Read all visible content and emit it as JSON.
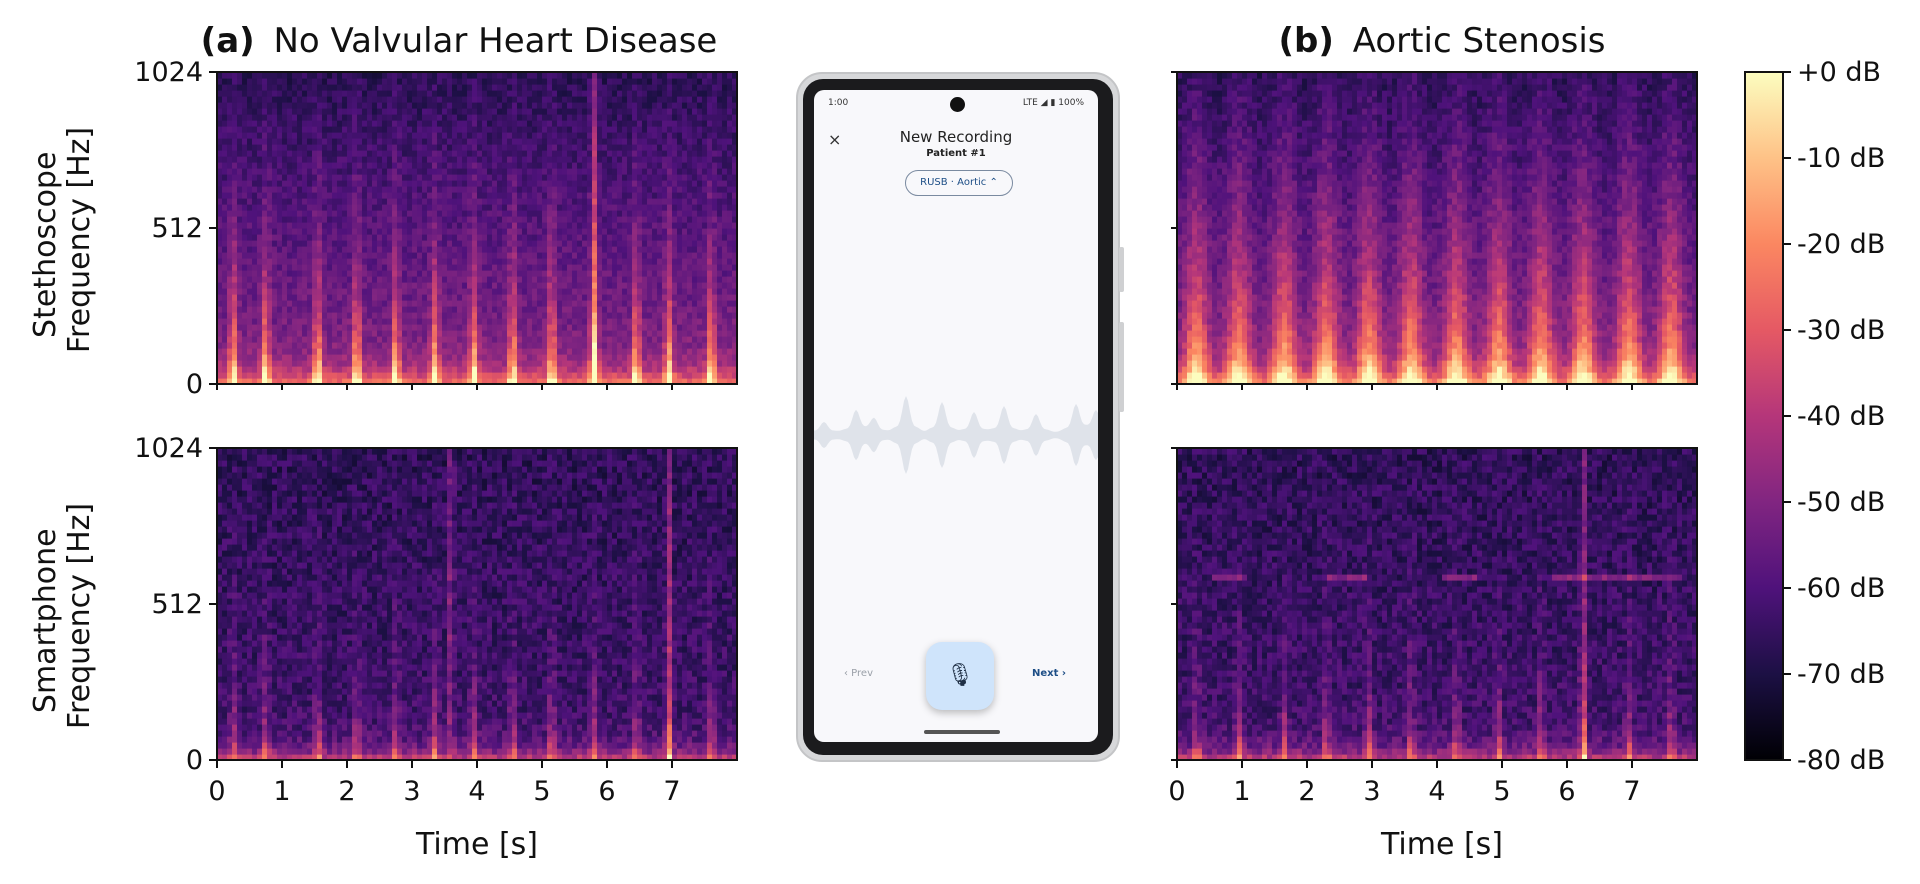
{
  "chart_data": {
    "type": "heatmap",
    "panels": [
      {
        "id": "a-stethoscope",
        "column": "a",
        "row": "stethoscope",
        "title_prefix": "(a)",
        "title": "No Valvular Heart Disease",
        "ylabel": "Stethoscope\nFrequency [Hz]"
      },
      {
        "id": "a-smartphone",
        "column": "a",
        "row": "smartphone",
        "ylabel": "Smartphone\nFrequency [Hz]",
        "xlabel": "Time [s]"
      },
      {
        "id": "b-stethoscope",
        "column": "b",
        "row": "stethoscope",
        "title_prefix": "(b)",
        "title": "Aortic Stenosis"
      },
      {
        "id": "b-smartphone",
        "column": "b",
        "row": "smartphone",
        "xlabel": "Time [s]"
      }
    ],
    "x_ticks": [
      "0",
      "1",
      "2",
      "3",
      "4",
      "5",
      "6",
      "7"
    ],
    "xlim": [
      0,
      8
    ],
    "y_ticks": [
      "0",
      "512",
      "1024"
    ],
    "ylim": [
      0,
      1024
    ],
    "xlabel": "Time [s]",
    "beats_a": [
      0.25,
      0.75,
      1.55,
      2.15,
      2.75,
      3.35,
      3.95,
      4.55,
      5.15,
      5.8,
      6.45,
      6.95,
      7.6
    ],
    "beats_b": [
      0.3,
      0.95,
      1.65,
      2.3,
      2.95,
      3.6,
      4.3,
      4.95,
      5.6,
      6.25,
      6.95,
      7.6
    ],
    "colorbar": {
      "ticks": [
        "+0 dB",
        "-10 dB",
        "-20 dB",
        "-30 dB",
        "-40 dB",
        "-50 dB",
        "-60 dB",
        "-70 dB",
        "-80 dB"
      ],
      "range_db": [
        -80,
        0
      ],
      "colormap": "magma",
      "stops": [
        "#000004",
        "#1c1044",
        "#4f127b",
        "#812581",
        "#b5367a",
        "#e55964",
        "#fb8761",
        "#fec287",
        "#fcfdbf"
      ]
    }
  },
  "phone": {
    "status_time": "1:00",
    "status_right": "LTE ◢ ▮ 100%",
    "close_icon": "×",
    "title": "New Recording",
    "subtitle": "Patient #1",
    "chip_label": "RUSB · Aortic ⌃",
    "prev_label": "‹  Prev",
    "next_label": "Next  ›",
    "mic_icon": "🎙"
  }
}
